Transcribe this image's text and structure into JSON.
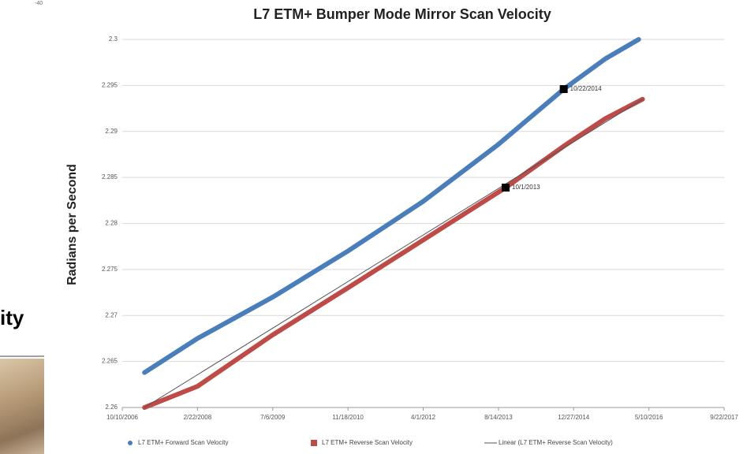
{
  "fragments": {
    "top_text": "-40",
    "side_text": "ity"
  },
  "chart_data": {
    "type": "line",
    "title": "L7 ETM+ Bumper Mode Mirror Scan Velocity",
    "y_label": "Radians per Second",
    "xlim": [
      "2006-10-10",
      "2017-09-22"
    ],
    "xticks": [
      {
        "value": "2006-10-10",
        "label": "10/10/2006"
      },
      {
        "value": "2008-02-22",
        "label": "2/22/2008"
      },
      {
        "value": "2009-07-06",
        "label": "7/6/2009"
      },
      {
        "value": "2010-11-18",
        "label": "11/18/2010"
      },
      {
        "value": "2012-04-01",
        "label": "4/1/2012"
      },
      {
        "value": "2013-08-14",
        "label": "8/14/2013"
      },
      {
        "value": "2014-12-27",
        "label": "12/27/2014"
      },
      {
        "value": "2016-05-10",
        "label": "5/10/2016"
      },
      {
        "value": "2017-09-22",
        "label": "9/22/2017"
      }
    ],
    "ylim": [
      2.26,
      2.3
    ],
    "yticks": [
      2.26,
      2.265,
      2.27,
      2.275,
      2.28,
      2.285,
      2.29,
      2.295,
      2.3
    ],
    "grid": true,
    "legend": "bottom",
    "series": [
      {
        "name": "L7 ETM+ Forward Scan Velocity",
        "color": "#4a7ebb",
        "marker": "circle",
        "width": 6,
        "x": [
          "2007-03-07",
          "2008-02-22",
          "2009-07-06",
          "2010-11-18",
          "2012-04-01",
          "2013-08-14",
          "2014-10-22",
          "2015-07-26",
          "2016-03-03"
        ],
        "values": [
          2.2638,
          2.2675,
          2.272,
          2.277,
          2.2824,
          2.2886,
          2.2946,
          2.2979,
          2.3
        ]
      },
      {
        "name": "L7 ETM+ Reverse Scan Velocity",
        "color": "#be4b48",
        "marker": "square",
        "width": 6,
        "x": [
          "2007-03-07",
          "2008-02-22",
          "2009-07-06",
          "2010-11-18",
          "2012-04-01",
          "2013-10-01",
          "2014-10-22",
          "2015-07-26",
          "2016-03-29"
        ],
        "values": [
          2.26,
          2.2623,
          2.2679,
          2.273,
          2.2782,
          2.2839,
          2.2884,
          2.2914,
          2.2935
        ]
      },
      {
        "name": "Linear (L7 ETM+ Reverse Scan Velocity)",
        "color": "#555555",
        "marker": "line",
        "width": 1,
        "x": [
          "2007-03-07",
          "2016-03-29"
        ],
        "values": [
          2.26,
          2.2935
        ]
      }
    ],
    "annotations": [
      {
        "x": "2014-10-22",
        "y": 2.2946,
        "text": "10/22/2014"
      },
      {
        "x": "2013-10-01",
        "y": 2.2839,
        "text": "10/1/2013"
      }
    ]
  }
}
